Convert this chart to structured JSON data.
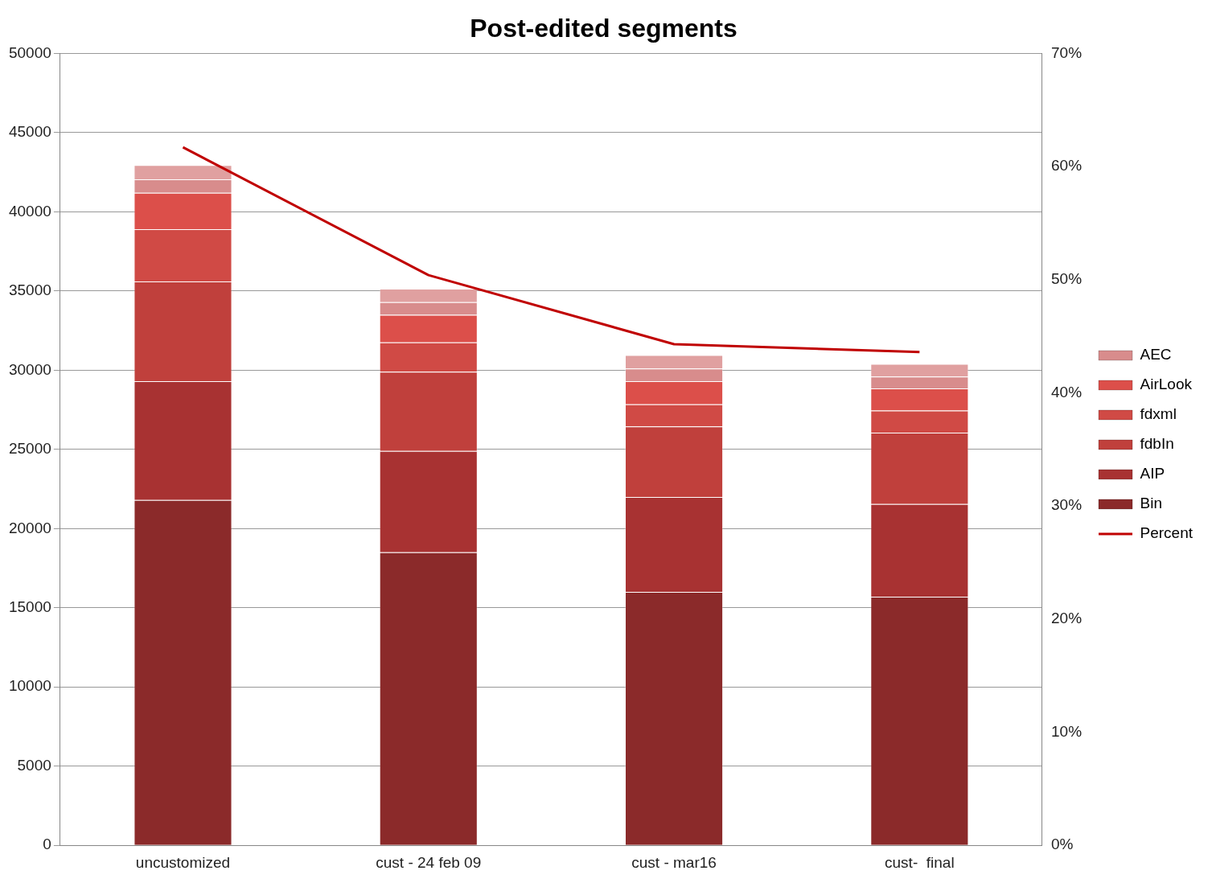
{
  "chart_data": {
    "type": "bar",
    "title": "Post-edited segments",
    "stacked": true,
    "categories": [
      "uncustomized",
      "cust - 24 feb 09",
      "cust - mar16",
      "cust-  final"
    ],
    "series": [
      {
        "name": "Bin",
        "color": "#8b2a2a",
        "values": [
          21800,
          18500,
          16000,
          15700
        ]
      },
      {
        "name": "AIP",
        "color": "#a83232",
        "values": [
          7500,
          6400,
          6000,
          5850
        ]
      },
      {
        "name": "fdbIn",
        "color": "#c0403c",
        "values": [
          6300,
          5000,
          4450,
          4500
        ]
      },
      {
        "name": "fdxml",
        "color": "#d04a45",
        "values": [
          3300,
          1850,
          1400,
          1400
        ]
      },
      {
        "name": "AirLook",
        "color": "#dc4f4a",
        "values": [
          2300,
          1750,
          1450,
          1400
        ]
      },
      {
        "name": "AEC",
        "color": "#d88c8c",
        "values": [
          850,
          800,
          800,
          750
        ]
      },
      {
        "color": "#e0a0a0",
        "values": [
          900,
          850,
          850,
          800
        ]
      },
      {
        "name": "Percent",
        "type": "line",
        "axis": "y2",
        "color": "#c00000",
        "values": [
          61.7,
          50.4,
          44.3,
          43.6
        ]
      }
    ],
    "ylim": [
      0,
      50000
    ],
    "yticks": [
      0,
      5000,
      10000,
      15000,
      20000,
      25000,
      30000,
      35000,
      40000,
      45000,
      50000
    ],
    "y2lim": [
      0,
      70
    ],
    "y2ticks": [
      {
        "value": 0,
        "label": "0%"
      },
      {
        "value": 10,
        "label": "10%"
      },
      {
        "value": 20,
        "label": "20%"
      },
      {
        "value": 30,
        "label": "30%"
      },
      {
        "value": 40,
        "label": "40%"
      },
      {
        "value": 50,
        "label": "50%"
      },
      {
        "value": 60,
        "label": "60%"
      },
      {
        "value": 70,
        "label": "70%"
      }
    ],
    "grid": "y",
    "legend": "right",
    "marker": "none"
  }
}
